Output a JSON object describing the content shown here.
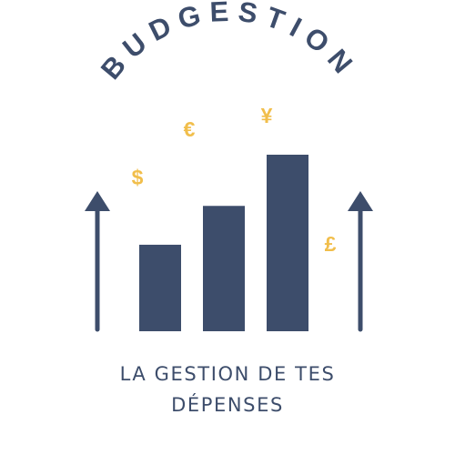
{
  "brand": {
    "name": "BUDGESTION",
    "tagline_line1": "LA GESTION DE TES",
    "tagline_line2": "DÉPENSES"
  },
  "currency_symbols": [
    {
      "symbol": "$",
      "name": "dollar-icon"
    },
    {
      "symbol": "€",
      "name": "euro-icon"
    },
    {
      "symbol": "¥",
      "name": "yen-icon"
    },
    {
      "symbol": "£",
      "name": "pound-icon"
    }
  ],
  "bars": {
    "relative_heights": [
      0.49,
      0.71,
      1.0
    ]
  },
  "colors": {
    "primary": "#3d4d6b",
    "accent": "#f1be4b",
    "background": "#ffffff"
  }
}
